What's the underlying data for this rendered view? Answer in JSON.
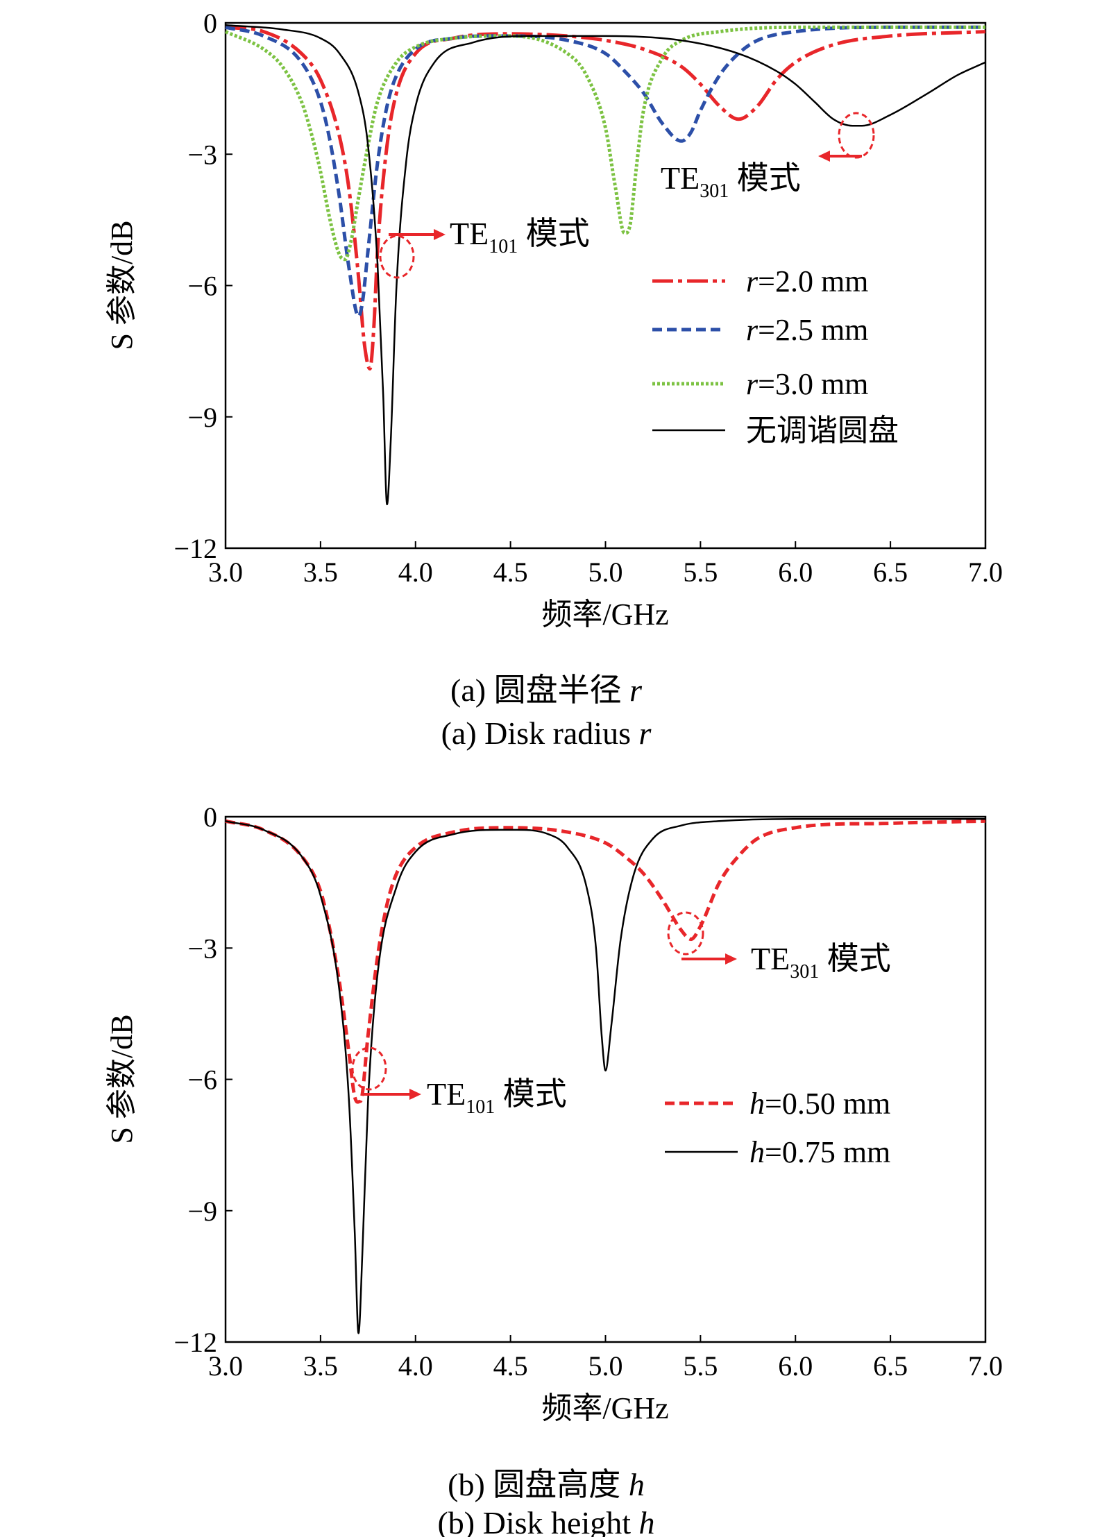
{
  "chart_data": [
    {
      "type": "line",
      "x_range": [
        3.0,
        7.0
      ],
      "y_range": [
        -12,
        0
      ],
      "x_ticks": [
        "3.0",
        "3.5",
        "4.0",
        "4.5",
        "5.0",
        "5.5",
        "6.0",
        "6.5",
        "7.0"
      ],
      "y_ticks": [
        "0",
        "−3",
        "−6",
        "−9",
        "−12"
      ],
      "xlabel": "频率/GHz",
      "ylabel": "S 参数/dB",
      "legend_position": "right-middle",
      "caption_cn_prefix": "(a) 圆盘半径 ",
      "caption_en_prefix": "(a) Disk radius ",
      "caption_var": "r",
      "annotations": [
        {
          "base": "TE",
          "sub": "101",
          "rest": " 模式"
        },
        {
          "base": "TE",
          "sub": "301",
          "rest": " 模式"
        }
      ],
      "series": [
        {
          "legend_var": "r",
          "legend_rest": "=2.0 mm",
          "color": "#e8262a",
          "dash": "dashdot",
          "x": [
            3.0,
            3.2,
            3.4,
            3.5,
            3.6,
            3.65,
            3.7,
            3.73,
            3.76,
            3.78,
            3.8,
            3.85,
            3.9,
            4.0,
            4.2,
            4.5,
            4.8,
            5.0,
            5.2,
            5.4,
            5.5,
            5.6,
            5.7,
            5.8,
            5.9,
            6.0,
            6.2,
            6.5,
            7.0
          ],
          "y": [
            -0.1,
            -0.2,
            -0.7,
            -1.3,
            -2.6,
            -3.8,
            -5.8,
            -7.3,
            -7.9,
            -7.0,
            -5.2,
            -2.8,
            -1.6,
            -0.7,
            -0.35,
            -0.25,
            -0.3,
            -0.4,
            -0.6,
            -1.0,
            -1.4,
            -1.9,
            -2.2,
            -1.9,
            -1.3,
            -0.9,
            -0.5,
            -0.3,
            -0.2
          ]
        },
        {
          "legend_var": "r",
          "legend_rest": "=2.5 mm",
          "color": "#2c4fa8",
          "dash": "dash",
          "x": [
            3.0,
            3.2,
            3.4,
            3.5,
            3.55,
            3.6,
            3.65,
            3.7,
            3.72,
            3.75,
            3.8,
            3.85,
            3.9,
            4.0,
            4.2,
            4.5,
            4.8,
            5.0,
            5.1,
            5.2,
            5.3,
            5.4,
            5.45,
            5.5,
            5.6,
            5.7,
            5.8,
            6.0,
            6.5,
            7.0
          ],
          "y": [
            -0.1,
            -0.3,
            -0.9,
            -1.8,
            -2.7,
            -4.0,
            -5.6,
            -6.7,
            -6.4,
            -5.2,
            -3.2,
            -1.9,
            -1.2,
            -0.6,
            -0.35,
            -0.3,
            -0.4,
            -0.7,
            -1.1,
            -1.6,
            -2.3,
            -2.7,
            -2.5,
            -2.0,
            -1.2,
            -0.7,
            -0.4,
            -0.2,
            -0.1,
            -0.1
          ]
        },
        {
          "legend_var": "r",
          "legend_rest": "=3.0 mm",
          "color": "#7cc242",
          "dash": "dot",
          "x": [
            3.0,
            3.2,
            3.3,
            3.4,
            3.45,
            3.5,
            3.55,
            3.6,
            3.63,
            3.66,
            3.7,
            3.75,
            3.8,
            3.9,
            4.0,
            4.2,
            4.5,
            4.8,
            4.9,
            5.0,
            5.05,
            5.1,
            5.13,
            5.16,
            5.2,
            5.3,
            5.4,
            5.6,
            6.0,
            6.5,
            7.0
          ],
          "y": [
            -0.2,
            -0.6,
            -1.0,
            -1.8,
            -2.5,
            -3.4,
            -4.5,
            -5.3,
            -5.4,
            -5.0,
            -4.0,
            -2.8,
            -1.8,
            -0.9,
            -0.55,
            -0.35,
            -0.3,
            -0.7,
            -1.2,
            -2.4,
            -3.7,
            -4.8,
            -4.6,
            -3.4,
            -2.0,
            -0.8,
            -0.4,
            -0.2,
            -0.1,
            -0.1,
            -0.1
          ]
        },
        {
          "legend_text": "无调谐圆盘",
          "color": "#000000",
          "dash": "solid",
          "x": [
            3.0,
            3.3,
            3.5,
            3.6,
            3.7,
            3.75,
            3.8,
            3.83,
            3.85,
            3.87,
            3.9,
            3.95,
            4.0,
            4.1,
            4.3,
            4.6,
            5.0,
            5.4,
            5.7,
            5.9,
            6.0,
            6.1,
            6.2,
            6.3,
            6.35,
            6.5,
            6.7,
            6.85,
            7.0
          ],
          "y": [
            -0.05,
            -0.15,
            -0.35,
            -0.7,
            -1.6,
            -2.8,
            -5.5,
            -8.5,
            -11.0,
            -9.5,
            -6.0,
            -3.2,
            -1.9,
            -0.9,
            -0.45,
            -0.3,
            -0.3,
            -0.4,
            -0.7,
            -1.1,
            -1.4,
            -1.8,
            -2.2,
            -2.35,
            -2.35,
            -2.1,
            -1.6,
            -1.2,
            -0.9
          ]
        }
      ]
    },
    {
      "type": "line",
      "x_range": [
        3.0,
        7.0
      ],
      "y_range": [
        -12,
        0
      ],
      "x_ticks": [
        "3.0",
        "3.5",
        "4.0",
        "4.5",
        "5.0",
        "5.5",
        "6.0",
        "6.5",
        "7.0"
      ],
      "y_ticks": [
        "0",
        "−3",
        "−6",
        "−9",
        "−12"
      ],
      "xlabel": "频率/GHz",
      "ylabel": "S 参数/dB",
      "legend_position": "right-middle",
      "caption_cn_prefix": "(b) 圆盘高度 ",
      "caption_en_prefix": "(b) Disk height ",
      "caption_var": "h",
      "annotations": [
        {
          "base": "TE",
          "sub": "101",
          "rest": " 模式"
        },
        {
          "base": "TE",
          "sub": "301",
          "rest": " 模式"
        }
      ],
      "series": [
        {
          "legend_var": "h",
          "legend_rest": "=0.50 mm",
          "color": "#e8262a",
          "dash": "dash",
          "x": [
            3.0,
            3.2,
            3.4,
            3.5,
            3.55,
            3.6,
            3.65,
            3.68,
            3.71,
            3.75,
            3.8,
            3.85,
            3.9,
            4.0,
            4.2,
            4.5,
            4.8,
            5.0,
            5.1,
            5.2,
            5.3,
            5.4,
            5.45,
            5.5,
            5.6,
            5.7,
            5.8,
            6.0,
            6.5,
            7.0
          ],
          "y": [
            -0.1,
            -0.3,
            -0.9,
            -1.7,
            -2.6,
            -3.8,
            -5.4,
            -6.4,
            -6.5,
            -5.0,
            -3.2,
            -2.0,
            -1.3,
            -0.7,
            -0.35,
            -0.25,
            -0.35,
            -0.6,
            -0.9,
            -1.3,
            -1.9,
            -2.6,
            -2.8,
            -2.5,
            -1.5,
            -0.9,
            -0.5,
            -0.25,
            -0.15,
            -0.1
          ]
        },
        {
          "legend_var": "h",
          "legend_rest": "=0.75 mm",
          "color": "#000000",
          "dash": "solid",
          "x": [
            3.0,
            3.2,
            3.4,
            3.5,
            3.6,
            3.65,
            3.68,
            3.7,
            3.72,
            3.75,
            3.8,
            3.9,
            4.0,
            4.2,
            4.5,
            4.7,
            4.8,
            4.9,
            4.95,
            4.98,
            5.0,
            5.03,
            5.08,
            5.15,
            5.25,
            5.4,
            5.6,
            6.0,
            6.5,
            7.0
          ],
          "y": [
            -0.1,
            -0.3,
            -0.9,
            -1.8,
            -4.0,
            -6.5,
            -9.5,
            -11.8,
            -10.0,
            -6.5,
            -3.6,
            -1.6,
            -0.8,
            -0.4,
            -0.3,
            -0.4,
            -0.7,
            -1.6,
            -3.0,
            -5.0,
            -5.8,
            -4.8,
            -2.8,
            -1.3,
            -0.5,
            -0.2,
            -0.1,
            -0.05,
            -0.05,
            -0.05
          ]
        }
      ]
    }
  ]
}
